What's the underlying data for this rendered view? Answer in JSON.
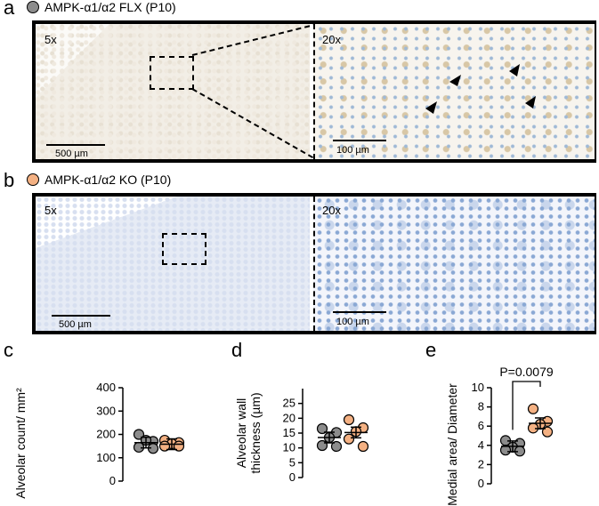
{
  "row_a": {
    "panel_letter": "a",
    "title": "AMPK-α1/α2 FLX (P10)",
    "dot_color": "#8c8c8c",
    "low_mag": "5x",
    "high_mag": "20x",
    "scalebar_low": "500 µm",
    "scalebar_high": "100 µm"
  },
  "row_b": {
    "panel_letter": "b",
    "title": "AMPK-α1/α2 KO (P10)",
    "dot_color": "#f4b183",
    "low_mag": "5x",
    "high_mag": "20x",
    "scalebar_low": "500 µm",
    "scalebar_high": "100 µm"
  },
  "chart_data": [
    {
      "panel_letter": "c",
      "type": "scatter",
      "ylabel": "Alveolar count/ mm²",
      "ylim": [
        0,
        400
      ],
      "yticks": [
        "0",
        "100",
        "200",
        "300",
        "400"
      ],
      "series": [
        {
          "color": "#8c8c8c",
          "values": [
            200,
            170,
            175,
            145,
            140
          ],
          "mean": 165
        },
        {
          "color": "#f4b183",
          "values": [
            175,
            165,
            160,
            150,
            150
          ],
          "mean": 158
        }
      ]
    },
    {
      "panel_letter": "d",
      "type": "scatter",
      "ylabel": "Alveolar wall thickness (µm)",
      "ylim": [
        0,
        30
      ],
      "yticks": [
        "0",
        "5",
        "10",
        "15",
        "20",
        "25"
      ],
      "series": [
        {
          "color": "#8c8c8c",
          "values": [
            16.5,
            15.2,
            13.5,
            10.8,
            10.5
          ],
          "mean": 13.5
        },
        {
          "color": "#f4b183",
          "values": [
            19.5,
            16.8,
            15.5,
            13.0,
            10.5
          ],
          "mean": 15.2
        }
      ]
    },
    {
      "panel_letter": "e",
      "type": "scatter",
      "ylabel": "Medial area/ Diameter",
      "ylim": [
        0,
        10
      ],
      "yticks": [
        "0",
        "2",
        "4",
        "6",
        "8",
        "10"
      ],
      "annotation": "P=0.0079",
      "series": [
        {
          "color": "#8c8c8c",
          "values": [
            4.5,
            4.2,
            3.8,
            3.5,
            3.4
          ],
          "mean": 3.9
        },
        {
          "color": "#f4b183",
          "values": [
            7.8,
            6.5,
            6.2,
            5.8,
            5.4
          ],
          "mean": 6.3
        }
      ]
    }
  ]
}
